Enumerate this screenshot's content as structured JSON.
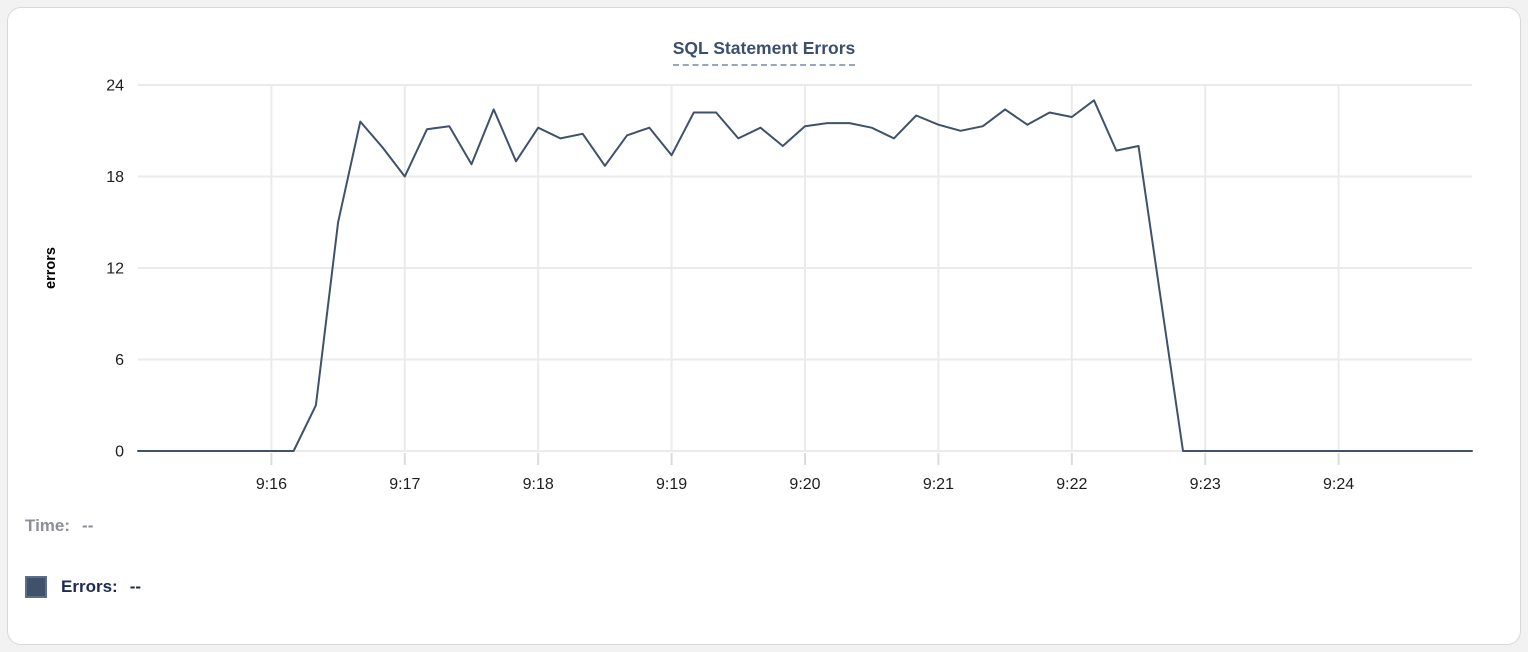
{
  "chart_data": {
    "type": "line",
    "title": "SQL Statement Errors",
    "xlabel": "",
    "ylabel": "errors",
    "ylim": [
      0,
      24
    ],
    "y_ticks": [
      0,
      6,
      12,
      18,
      24
    ],
    "x_tick_labels": [
      "9:16",
      "9:17",
      "9:18",
      "9:19",
      "9:20",
      "9:21",
      "9:22",
      "9:23",
      "9:24"
    ],
    "x_range": [
      "9:15:00",
      "9:25:00"
    ],
    "sample_interval_seconds": 10,
    "grid": true,
    "legend_position": "bottom-left",
    "series": [
      {
        "name": "Errors",
        "color": "#41516b",
        "values": [
          0,
          0,
          0,
          0,
          0,
          0,
          0,
          0,
          3,
          15,
          21.6,
          19.9,
          18,
          21.1,
          21.3,
          18.8,
          22.4,
          19,
          21.2,
          20.5,
          20.8,
          18.7,
          20.7,
          21.2,
          19.4,
          22.2,
          22.2,
          20.5,
          21.2,
          20,
          21.3,
          21.5,
          21.5,
          21.2,
          20.5,
          22,
          21.4,
          21,
          21.3,
          22.4,
          21.4,
          22.2,
          21.9,
          23,
          19.7,
          20,
          10,
          0,
          0,
          0,
          0,
          0,
          0,
          0,
          0,
          0,
          0,
          0,
          0,
          0,
          0
        ]
      }
    ]
  },
  "readout": {
    "time_label": "Time:",
    "time_value": "--",
    "errors_label": "Errors:",
    "errors_value": "--"
  },
  "colors": {
    "line": "#41516b",
    "grid": "#ebebeb",
    "tick": "#dcdcdc",
    "axis_text": "#1d1d1f",
    "title": "#3b4f6e",
    "title_underline": "#96a4c0",
    "time_readout": "#8b8f96",
    "errors_readout": "#1c2b55",
    "swatch": "#41516b",
    "card_border": "#d8d8d8",
    "card_bg": "#ffffff"
  }
}
